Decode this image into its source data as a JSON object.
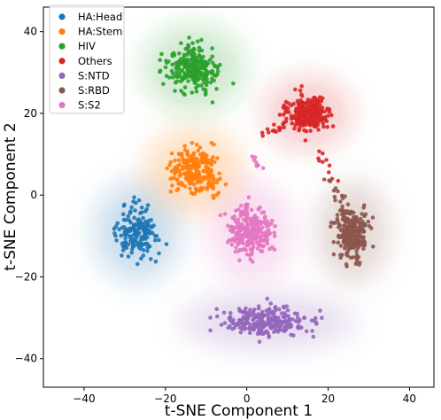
{
  "chart_data": {
    "type": "scatter",
    "title": "",
    "xlabel": "t-SNE Component 1",
    "ylabel": "t-SNE Component 2",
    "xlim": [
      -50,
      46
    ],
    "ylim": [
      -47,
      46
    ],
    "xticks": [
      -40,
      -20,
      0,
      20,
      40
    ],
    "yticks": [
      40,
      20,
      0,
      -20,
      -40
    ],
    "xtick_labels": [
      "−40",
      "−20",
      "0",
      "20",
      "40"
    ],
    "ytick_labels": [
      "40",
      "20",
      "0",
      "−20",
      "−40"
    ],
    "grid": false,
    "legend_position": "top-left",
    "series": [
      {
        "name": "HA:Head",
        "color": "#1f77b4",
        "center": [
          -27,
          -9
        ],
        "spread": [
          6,
          7
        ],
        "count": 170
      },
      {
        "name": "HA:Stem",
        "color": "#ff7f0e",
        "center": [
          -13,
          6
        ],
        "spread": [
          7,
          6
        ],
        "count": 240
      },
      {
        "name": "HIV",
        "color": "#2ca02c",
        "center": [
          -13,
          31
        ],
        "spread": [
          7,
          6
        ],
        "count": 250
      },
      {
        "name": "Others",
        "color": "#d62728",
        "center": [
          15,
          20
        ],
        "spread": [
          6,
          5
        ],
        "count": 260
      },
      {
        "name": "S:NTD",
        "color": "#9467bd",
        "center": [
          5,
          -31
        ],
        "spread": [
          12,
          4
        ],
        "count": 260
      },
      {
        "name": "S:RBD",
        "color": "#8c564b",
        "center": [
          26,
          -9
        ],
        "spread": [
          5,
          7
        ],
        "count": 250
      },
      {
        "name": "S:S2",
        "color": "#e377c2",
        "center": [
          1,
          -9
        ],
        "spread": [
          6,
          7
        ],
        "count": 240
      }
    ]
  }
}
